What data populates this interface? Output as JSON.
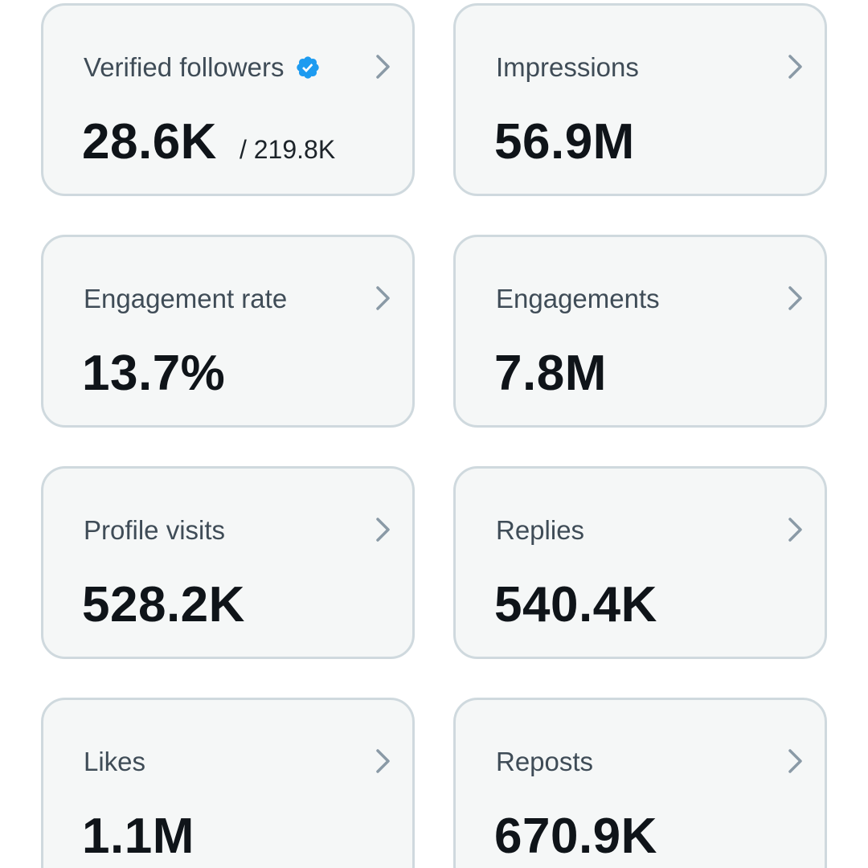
{
  "colors": {
    "card_background": "#f5f7f7",
    "card_border": "#cfd9de",
    "label_text": "#3f4c57",
    "value_text": "#0f1419",
    "chevron": "#8a9aa6",
    "verified_badge": "#1d9bf0"
  },
  "icons": {
    "chevron": "chevron-right-icon",
    "verified": "verified-badge-icon"
  },
  "metrics": [
    {
      "label": "Verified followers",
      "value": "28.6K",
      "total": "/ 219.8K",
      "verified": true
    },
    {
      "label": "Impressions",
      "value": "56.9M"
    },
    {
      "label": "Engagement rate",
      "value": "13.7%"
    },
    {
      "label": "Engagements",
      "value": "7.8M"
    },
    {
      "label": "Profile visits",
      "value": "528.2K"
    },
    {
      "label": "Replies",
      "value": "540.4K"
    },
    {
      "label": "Likes",
      "value": "1.1M"
    },
    {
      "label": "Reposts",
      "value": "670.9K"
    }
  ]
}
